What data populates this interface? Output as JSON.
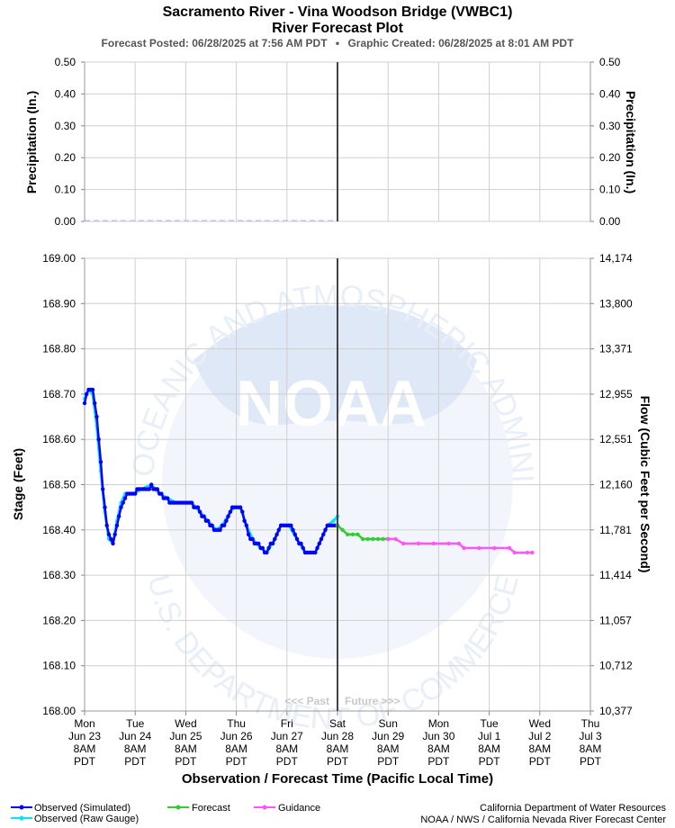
{
  "chart_data": {
    "type": "line",
    "title": "Sacramento River - Vina Woodson Bridge (VWBC1)",
    "subtitle": "River Forecast Plot",
    "info": {
      "forecast_posted": "Forecast Posted: 06/28/2025 at 7:56 AM PDT",
      "separator": "•",
      "graphic_created": "Graphic Created: 06/28/2025 at 8:01 AM PDT"
    },
    "xlabel": "Observation / Forecast Time (Pacific Local Time)",
    "x_ticks": [
      [
        "Mon",
        "Jun 23",
        "8AM",
        "PDT"
      ],
      [
        "Tue",
        "Jun 24",
        "8AM",
        "PDT"
      ],
      [
        "Wed",
        "Jun 25",
        "8AM",
        "PDT"
      ],
      [
        "Thu",
        "Jun 26",
        "8AM",
        "PDT"
      ],
      [
        "Fri",
        "Jun 27",
        "8AM",
        "PDT"
      ],
      [
        "Sat",
        "Jun 28",
        "8AM",
        "PDT"
      ],
      [
        "Sun",
        "Jun 29",
        "8AM",
        "PDT"
      ],
      [
        "Mon",
        "Jun 30",
        "8AM",
        "PDT"
      ],
      [
        "Tue",
        "Jul 1",
        "8AM",
        "PDT"
      ],
      [
        "Wed",
        "Jul 2",
        "8AM",
        "PDT"
      ],
      [
        "Thu",
        "Jul 3",
        "8AM",
        "PDT"
      ]
    ],
    "now_marker": {
      "past_label": "<<< Past",
      "future_label": "Future >>>"
    },
    "precip_panel": {
      "ylabel": "Precipitation (In.)",
      "ylim": [
        0,
        0.5
      ],
      "ticks": [
        "0.00",
        "0.10",
        "0.20",
        "0.30",
        "0.40",
        "0.50"
      ]
    },
    "stage_panel": {
      "ylabel_left": "Stage (Feet)",
      "ylabel_right": "Flow (Cubic Feet per Second)",
      "ylim": [
        168.0,
        169.0
      ],
      "ticks_left": [
        "168.00",
        "168.10",
        "168.20",
        "168.30",
        "168.40",
        "168.50",
        "168.60",
        "168.70",
        "168.80",
        "168.90",
        "169.00"
      ],
      "ticks_right": [
        "10,377",
        "10,712",
        "11,057",
        "11,414",
        "11,781",
        "12,160",
        "12,551",
        "12,955",
        "13,371",
        "13,800",
        "14,174"
      ]
    },
    "x_unit": "days since Mon Jun 23 8AM PDT",
    "series": [
      {
        "name": "Observed (Simulated)",
        "color": "#0000ff",
        "values": [
          [
            0.0,
            168.68
          ],
          [
            0.04,
            168.7
          ],
          [
            0.08,
            168.71
          ],
          [
            0.12,
            168.71
          ],
          [
            0.16,
            168.71
          ],
          [
            0.2,
            168.68
          ],
          [
            0.24,
            168.65
          ],
          [
            0.28,
            168.6
          ],
          [
            0.32,
            168.55
          ],
          [
            0.36,
            168.49
          ],
          [
            0.4,
            168.45
          ],
          [
            0.44,
            168.41
          ],
          [
            0.48,
            168.39
          ],
          [
            0.52,
            168.38
          ],
          [
            0.56,
            168.37
          ],
          [
            0.6,
            168.39
          ],
          [
            0.64,
            168.41
          ],
          [
            0.68,
            168.43
          ],
          [
            0.72,
            168.45
          ],
          [
            0.76,
            168.46
          ],
          [
            0.8,
            168.47
          ],
          [
            0.84,
            168.48
          ],
          [
            0.88,
            168.48
          ],
          [
            0.92,
            168.48
          ],
          [
            0.96,
            168.48
          ],
          [
            1.0,
            168.48
          ],
          [
            1.04,
            168.49
          ],
          [
            1.08,
            168.49
          ],
          [
            1.12,
            168.49
          ],
          [
            1.16,
            168.49
          ],
          [
            1.2,
            168.49
          ],
          [
            1.24,
            168.49
          ],
          [
            1.28,
            168.49
          ],
          [
            1.32,
            168.5
          ],
          [
            1.36,
            168.49
          ],
          [
            1.4,
            168.49
          ],
          [
            1.44,
            168.49
          ],
          [
            1.48,
            168.48
          ],
          [
            1.52,
            168.48
          ],
          [
            1.56,
            168.47
          ],
          [
            1.6,
            168.47
          ],
          [
            1.64,
            168.47
          ],
          [
            1.68,
            168.46
          ],
          [
            1.72,
            168.46
          ],
          [
            1.76,
            168.46
          ],
          [
            1.8,
            168.46
          ],
          [
            1.84,
            168.46
          ],
          [
            1.88,
            168.46
          ],
          [
            1.92,
            168.46
          ],
          [
            1.96,
            168.46
          ],
          [
            2.0,
            168.46
          ],
          [
            2.04,
            168.46
          ],
          [
            2.08,
            168.46
          ],
          [
            2.12,
            168.46
          ],
          [
            2.16,
            168.45
          ],
          [
            2.2,
            168.45
          ],
          [
            2.24,
            168.45
          ],
          [
            2.28,
            168.44
          ],
          [
            2.32,
            168.43
          ],
          [
            2.36,
            168.43
          ],
          [
            2.4,
            168.42
          ],
          [
            2.44,
            168.42
          ],
          [
            2.48,
            168.41
          ],
          [
            2.52,
            168.41
          ],
          [
            2.56,
            168.4
          ],
          [
            2.6,
            168.4
          ],
          [
            2.64,
            168.4
          ],
          [
            2.68,
            168.4
          ],
          [
            2.72,
            168.41
          ],
          [
            2.76,
            168.41
          ],
          [
            2.8,
            168.42
          ],
          [
            2.84,
            168.43
          ],
          [
            2.88,
            168.44
          ],
          [
            2.92,
            168.45
          ],
          [
            2.96,
            168.45
          ],
          [
            3.0,
            168.45
          ],
          [
            3.04,
            168.45
          ],
          [
            3.08,
            168.45
          ],
          [
            3.12,
            168.44
          ],
          [
            3.16,
            168.42
          ],
          [
            3.2,
            168.41
          ],
          [
            3.24,
            168.39
          ],
          [
            3.28,
            168.38
          ],
          [
            3.32,
            168.38
          ],
          [
            3.36,
            168.37
          ],
          [
            3.4,
            168.37
          ],
          [
            3.44,
            168.37
          ],
          [
            3.48,
            168.36
          ],
          [
            3.52,
            168.36
          ],
          [
            3.56,
            168.35
          ],
          [
            3.6,
            168.35
          ],
          [
            3.64,
            168.36
          ],
          [
            3.68,
            168.37
          ],
          [
            3.72,
            168.37
          ],
          [
            3.76,
            168.38
          ],
          [
            3.8,
            168.39
          ],
          [
            3.84,
            168.4
          ],
          [
            3.88,
            168.41
          ],
          [
            3.92,
            168.41
          ],
          [
            3.96,
            168.41
          ],
          [
            4.0,
            168.41
          ],
          [
            4.04,
            168.41
          ],
          [
            4.08,
            168.41
          ],
          [
            4.12,
            168.4
          ],
          [
            4.16,
            168.39
          ],
          [
            4.2,
            168.38
          ],
          [
            4.24,
            168.37
          ],
          [
            4.28,
            168.37
          ],
          [
            4.32,
            168.36
          ],
          [
            4.36,
            168.35
          ],
          [
            4.4,
            168.35
          ],
          [
            4.44,
            168.35
          ],
          [
            4.48,
            168.35
          ],
          [
            4.52,
            168.35
          ],
          [
            4.56,
            168.35
          ],
          [
            4.6,
            168.36
          ],
          [
            4.64,
            168.37
          ],
          [
            4.68,
            168.38
          ],
          [
            4.72,
            168.39
          ],
          [
            4.76,
            168.4
          ],
          [
            4.8,
            168.41
          ],
          [
            4.84,
            168.41
          ],
          [
            4.88,
            168.41
          ],
          [
            4.92,
            168.41
          ],
          [
            4.96,
            168.41
          ],
          [
            5.0,
            168.41
          ]
        ]
      },
      {
        "name": "Observed (Raw Gauge)",
        "color": "#00e5ff",
        "values": [
          [
            0.0,
            168.69
          ],
          [
            0.08,
            168.71
          ],
          [
            0.16,
            168.7
          ],
          [
            0.24,
            168.63
          ],
          [
            0.32,
            168.53
          ],
          [
            0.4,
            168.44
          ],
          [
            0.48,
            168.38
          ],
          [
            0.56,
            168.37
          ],
          [
            0.64,
            168.42
          ],
          [
            0.72,
            168.46
          ],
          [
            0.8,
            168.48
          ],
          [
            0.96,
            168.48
          ],
          [
            1.12,
            168.49
          ],
          [
            1.32,
            168.5
          ],
          [
            1.48,
            168.48
          ],
          [
            1.64,
            168.47
          ],
          [
            1.8,
            168.46
          ],
          [
            2.12,
            168.46
          ],
          [
            2.28,
            168.44
          ],
          [
            2.44,
            168.42
          ],
          [
            2.6,
            168.4
          ],
          [
            2.72,
            168.41
          ],
          [
            2.88,
            168.44
          ],
          [
            2.96,
            168.45
          ],
          [
            3.08,
            168.45
          ],
          [
            3.2,
            168.41
          ],
          [
            3.32,
            168.38
          ],
          [
            3.48,
            168.36
          ],
          [
            3.6,
            168.35
          ],
          [
            3.76,
            168.38
          ],
          [
            3.88,
            168.41
          ],
          [
            4.04,
            168.41
          ],
          [
            4.2,
            168.38
          ],
          [
            4.36,
            168.35
          ],
          [
            4.56,
            168.35
          ],
          [
            4.68,
            168.38
          ],
          [
            4.8,
            168.41
          ],
          [
            4.92,
            168.42
          ],
          [
            5.0,
            168.43
          ]
        ]
      },
      {
        "name": "Forecast",
        "color": "#33cc33",
        "values": [
          [
            5.0,
            168.41
          ],
          [
            5.1,
            168.4
          ],
          [
            5.2,
            168.39
          ],
          [
            5.3,
            168.39
          ],
          [
            5.4,
            168.39
          ],
          [
            5.5,
            168.38
          ],
          [
            5.6,
            168.38
          ],
          [
            5.7,
            168.38
          ],
          [
            5.8,
            168.38
          ],
          [
            5.9,
            168.38
          ],
          [
            6.0,
            168.38
          ]
        ]
      },
      {
        "name": "Guidance",
        "color": "#ff55ff",
        "values": [
          [
            6.0,
            168.38
          ],
          [
            6.15,
            168.38
          ],
          [
            6.3,
            168.37
          ],
          [
            6.6,
            168.37
          ],
          [
            6.9,
            168.37
          ],
          [
            7.2,
            168.37
          ],
          [
            7.4,
            168.37
          ],
          [
            7.5,
            168.36
          ],
          [
            7.8,
            168.36
          ],
          [
            8.1,
            168.36
          ],
          [
            8.4,
            168.36
          ],
          [
            8.5,
            168.35
          ],
          [
            8.75,
            168.35
          ],
          [
            8.85,
            168.35
          ]
        ]
      }
    ],
    "legend": [
      {
        "label": "Observed (Simulated)",
        "color": "#0000ff"
      },
      {
        "label": "Observed (Raw Gauge)",
        "color": "#00e5ff"
      },
      {
        "label": "Forecast",
        "color": "#33cc33"
      },
      {
        "label": "Guidance",
        "color": "#ff55ff"
      }
    ],
    "credits": [
      "California Department of Water Resources",
      "NOAA / NWS / California Nevada River Forecast Center"
    ],
    "watermark": {
      "logo_text": "NOAA",
      "ring_top": "NATIONAL OCEANIC AND ATMOSPHERIC ADMINISTRATION",
      "ring_bottom": "U.S. DEPARTMENT OF COMMERCE"
    }
  }
}
